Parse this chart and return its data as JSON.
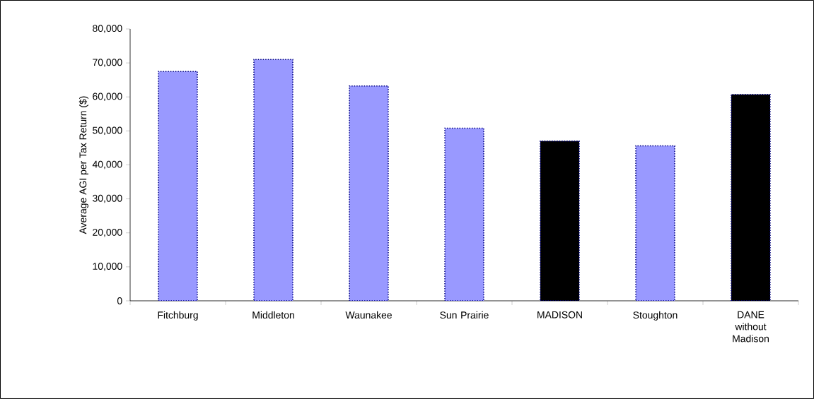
{
  "chart_data": {
    "type": "bar",
    "ylabel": "Average AGI per Tax Return ($)",
    "categories": [
      "Fitchburg",
      "Middleton",
      "Waunakee",
      "Sun Prairie",
      "MADISON",
      "Stoughton",
      "DANE without Madison"
    ],
    "values": [
      67500,
      71000,
      63200,
      50800,
      47000,
      45600,
      60700
    ],
    "colors": [
      "#9999ff",
      "#9999ff",
      "#9999ff",
      "#9999ff",
      "#000000",
      "#9999ff",
      "#000000"
    ],
    "ylim": [
      0,
      80000
    ],
    "yticks": [
      0,
      {
        "value": 10000,
        "label": "10,000"
      },
      {
        "value": 20000,
        "label": "20,000"
      },
      {
        "value": 30000,
        "label": "30,000"
      },
      {
        "value": 40000,
        "label": "40,000"
      },
      {
        "value": 50000,
        "label": "50,000"
      },
      {
        "value": 60000,
        "label": "60,000"
      },
      {
        "value": 70000,
        "label": "70,000"
      },
      {
        "value": 80000,
        "label": "80,000"
      }
    ],
    "grid": false
  }
}
